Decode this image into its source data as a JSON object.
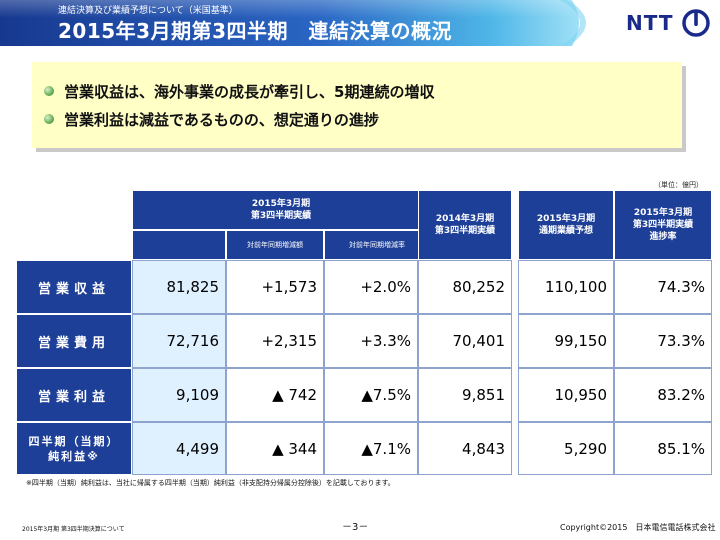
{
  "header": {
    "subtitle": "連結決算及び業績予想について（米国基準）",
    "title": "2015年3月期第3四半期　連結決算の概況",
    "logo_text": "NTT",
    "colors": {
      "banner_dark": "#1d3f97",
      "banner_light": "#5cc8ee",
      "logo": "#1a2a8a"
    }
  },
  "summary": {
    "items": [
      "営業収益は、海外事業の成長が牽引し、5期連続の増収",
      "営業利益は減益であるものの、想定通りの進捗"
    ],
    "bullet_icon": "green-sphere-bullet",
    "background": "#ffffc6"
  },
  "unit_label": "（単位：億円）",
  "table": {
    "headers": {
      "q3_actual_line1": "2015年3月期",
      "q3_actual_line2": "第3四半期実績",
      "yoy_change": "対前年同期増減額",
      "yoy_rate": "対前年同期増減率",
      "prev_actual_line1": "2014年3月期",
      "prev_actual_line2": "第3四半期実績",
      "forecast_line1": "2015年3月期",
      "forecast_line2": "通期業績予想",
      "progress_line1": "2015年3月期",
      "progress_line2": "第3四半期実績",
      "progress_line3": "進捗率"
    },
    "rows": [
      {
        "label": "営業収益",
        "actual": "81,825",
        "yoy_change": "+1,573",
        "yoy_rate": "+2.0%",
        "prev_actual": "80,252",
        "forecast": "110,100",
        "progress": "74.3%"
      },
      {
        "label": "営業費用",
        "actual": "72,716",
        "yoy_change": "+2,315",
        "yoy_rate": "+3.3%",
        "prev_actual": "70,401",
        "forecast": "99,150",
        "progress": "73.3%"
      },
      {
        "label": "営業利益",
        "actual": "9,109",
        "yoy_change": "▲ 742",
        "yoy_rate": "▲7.5%",
        "prev_actual": "9,851",
        "forecast": "10,950",
        "progress": "83.2%"
      },
      {
        "label_line1": "四半期（当期）",
        "label_line2": "純利益※",
        "actual": "4,499",
        "yoy_change": "▲ 344",
        "yoy_rate": "▲7.1%",
        "prev_actual": "4,843",
        "forecast": "5,290",
        "progress": "85.1%"
      }
    ]
  },
  "footnote": "※四半期（当期）純利益は、当社に帰属する四半期（当期）純利益（非支配持分帰属分控除後）を記載しております。",
  "footer": {
    "left": "2015年3月期 第3四半期決算について",
    "page": "－3－",
    "copyright": "Copyright©2015　日本電信電話株式会社"
  }
}
